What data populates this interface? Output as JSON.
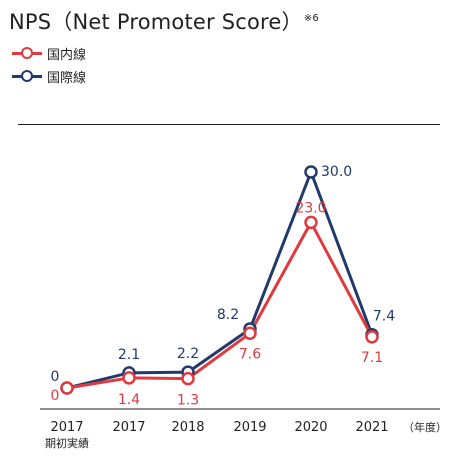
{
  "header": {
    "title": "NPS（Net Promoter Score）",
    "title_note": "※6"
  },
  "colors": {
    "domestic": "#e03a3e",
    "international": "#1f3a6b",
    "axis": "#231f20"
  },
  "chart_data": {
    "type": "line",
    "title": "NPS（Net Promoter Score）",
    "categories": [
      "2017",
      "2017",
      "2018",
      "2019",
      "2020",
      "2021"
    ],
    "category_sublabels": [
      "期初実績",
      "",
      "",
      "",
      "",
      ""
    ],
    "x_unit_label": "（年度）",
    "ylim": [
      0,
      30
    ],
    "grid": false,
    "legend_position": "top-left",
    "series": [
      {
        "name": "国内線",
        "color": "#e03a3e",
        "values": [
          0,
          1.4,
          1.3,
          7.6,
          23.0,
          7.1
        ]
      },
      {
        "name": "国際線",
        "color": "#1f3a6b",
        "values": [
          0,
          2.1,
          2.2,
          8.2,
          30.0,
          7.4
        ]
      }
    ],
    "data_labels": {
      "国内線": [
        "0",
        "1.4",
        "1.3",
        "7.6",
        "23.0",
        "7.1"
      ],
      "国際線": [
        "0",
        "2.1",
        "2.2",
        "8.2",
        "30.0",
        "7.4"
      ]
    }
  }
}
